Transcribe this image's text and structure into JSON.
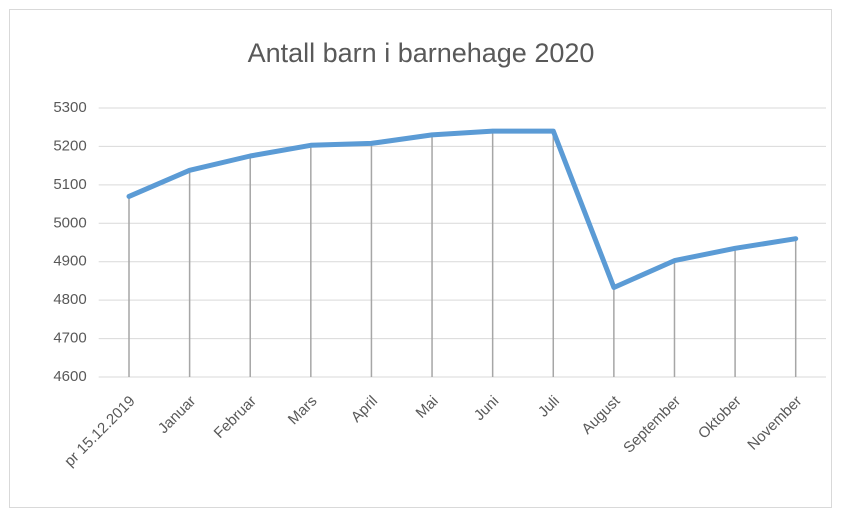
{
  "chart_data": {
    "type": "line",
    "title": "Antall barn i barnehage 2020",
    "categories": [
      "pr 15.12.2019",
      "Januar",
      "Februar",
      "Mars",
      "April",
      "Mai",
      "Juni",
      "Juli",
      "August",
      "September",
      "Oktober",
      "November"
    ],
    "values": [
      5070,
      5138,
      5175,
      5203,
      5208,
      5230,
      5240,
      5240,
      4833,
      4903,
      4935,
      4960
    ],
    "color": "#5b9bd5",
    "ylim": [
      4600,
      5300
    ],
    "yticks": [
      4600,
      4700,
      4800,
      4900,
      5000,
      5100,
      5200,
      5300
    ],
    "grid": true,
    "drop_lines": true
  }
}
